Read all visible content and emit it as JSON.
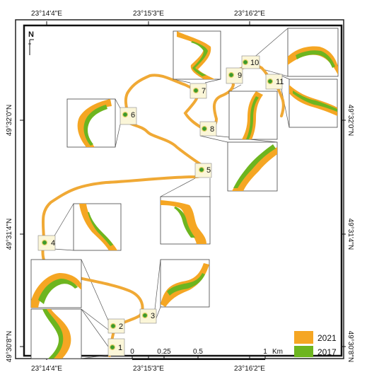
{
  "coords": {
    "top": [
      "23°14'4\"E",
      "23°15'3\"E",
      "23°16'2\"E"
    ],
    "bottom": [
      "23°14'4\"E",
      "23°15'3\"E",
      "23°16'2\"E"
    ],
    "left": [
      "49°32'0\"N",
      "49°31'4\"N",
      "49°30'8\"N"
    ],
    "right": [
      "49°32'0\"N",
      "49°31'4\"N",
      "49°30'8\"N"
    ]
  },
  "north": "N",
  "sites": [
    "1",
    "2",
    "3",
    "4",
    "5",
    "6",
    "7",
    "8",
    "9",
    "10",
    "11"
  ],
  "scale": {
    "ticks": [
      "0",
      "0.25",
      "0.5",
      "1"
    ],
    "unit": "Km"
  },
  "legend": [
    {
      "label": "2021",
      "color": "#f5a623"
    },
    {
      "label": "2017",
      "color": "#6db51f"
    }
  ],
  "colors": {
    "river": "#f0a935",
    "marker_fill": "#3c9a2c",
    "site_box": "#fbf6d8"
  }
}
